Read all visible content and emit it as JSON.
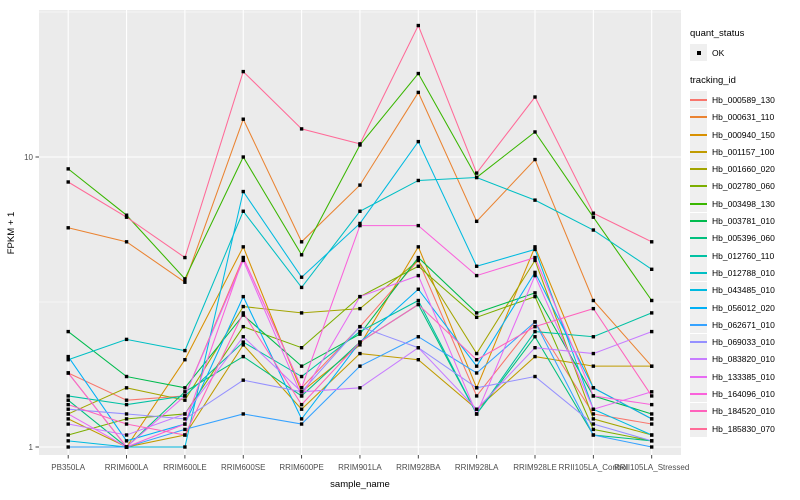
{
  "legend": {
    "quant_status": {
      "title": "quant_status",
      "items": [
        {
          "label": "OK",
          "marker": "point"
        }
      ]
    },
    "tracking": {
      "title": "tracking_id"
    }
  },
  "colors": {
    "panel_bg": "#EBEBEB",
    "grid_major": "#FFFFFF",
    "grid_minor": "#F7F7F7",
    "point": "#000000",
    "axis_text": "#4D4D4D",
    "axis_title": "#000000",
    "tick_mark": "#333333",
    "legend_key_bg": "#EFEFEF"
  },
  "chart_data": {
    "type": "line",
    "title": "",
    "xlabel": "sample_name",
    "ylabel": "FPKM + 1",
    "y_scale": "log10",
    "y_ticks": [
      {
        "value": 1,
        "label": "1"
      },
      {
        "value": 10,
        "label": "10"
      }
    ],
    "y_minor_ticks": [
      3.162,
      31.62
    ],
    "ylim": [
      0.94,
      32.1
    ],
    "grid": true,
    "legend_position": "right",
    "x_categories": [
      "PB350LA",
      "RRIM600LA",
      "RRIM600LE",
      "RRIM600SE",
      "RRIM600PE",
      "RRIM901LA",
      "RRIM928BA",
      "RRIM928LA",
      "RRIM928LE",
      "RRII105LA_Control",
      "RRII105LA_Stressed"
    ],
    "series": [
      {
        "name": "Hb_000589_130",
        "color": "#F8766D",
        "quant_status": "OK",
        "values": [
          1.8,
          1.45,
          1.5,
          4.5,
          1.6,
          2.6,
          4.4,
          1.5,
          2.7,
          1.3,
          1.2
        ]
      },
      {
        "name": "Hb_000631_110",
        "color": "#EA8331",
        "quant_status": "OK",
        "values": [
          5.7,
          5.1,
          3.7,
          13.5,
          5.1,
          8.0,
          16.7,
          6.0,
          9.8,
          3.2,
          1.9
        ]
      },
      {
        "name": "Hb_000940_150",
        "color": "#D89000",
        "quant_status": "OK",
        "values": [
          1.8,
          1.0,
          2.0,
          4.9,
          1.55,
          2.25,
          4.9,
          1.6,
          4.9,
          1.6,
          1.25
        ]
      },
      {
        "name": "Hb_001157_100",
        "color": "#C09B00",
        "quant_status": "OK",
        "values": [
          1.25,
          1.0,
          1.1,
          2.25,
          1.35,
          2.1,
          2.0,
          1.35,
          2.05,
          1.9,
          1.9
        ]
      },
      {
        "name": "Hb_001660_020",
        "color": "#A3A500",
        "quant_status": "OK",
        "values": [
          1.3,
          1.6,
          1.45,
          3.05,
          2.9,
          3.0,
          4.4,
          2.1,
          4.4,
          1.25,
          1.1
        ]
      },
      {
        "name": "Hb_002780_060",
        "color": "#7CAE00",
        "quant_status": "OK",
        "values": [
          1.1,
          1.25,
          1.3,
          2.6,
          2.2,
          3.3,
          4.2,
          2.8,
          3.3,
          1.15,
          1.05
        ]
      },
      {
        "name": "Hb_003498_130",
        "color": "#39B600",
        "quant_status": "OK",
        "values": [
          9.1,
          6.3,
          3.8,
          10.0,
          4.6,
          11.0,
          19.4,
          8.5,
          12.2,
          6.2,
          3.2
        ]
      },
      {
        "name": "Hb_003781_010",
        "color": "#00BB4E",
        "quant_status": "OK",
        "values": [
          2.5,
          1.75,
          1.6,
          2.85,
          1.9,
          2.45,
          4.5,
          2.9,
          3.4,
          1.5,
          1.3
        ]
      },
      {
        "name": "Hb_005396_060",
        "color": "#00BF7D",
        "quant_status": "OK",
        "values": [
          1.45,
          1.0,
          1.55,
          2.05,
          1.5,
          2.3,
          3.1,
          1.3,
          2.4,
          1.1,
          1.05
        ]
      },
      {
        "name": "Hb_012760_110",
        "color": "#00C1A3",
        "quant_status": "OK",
        "values": [
          1.5,
          1.4,
          1.5,
          2.3,
          1.75,
          2.5,
          3.2,
          1.3,
          2.5,
          2.4,
          2.9
        ]
      },
      {
        "name": "Hb_012788_010",
        "color": "#00BFC4",
        "quant_status": "OK",
        "values": [
          2.0,
          2.35,
          2.15,
          6.5,
          3.55,
          6.5,
          8.3,
          8.5,
          7.1,
          5.6,
          4.1
        ]
      },
      {
        "name": "Hb_043485_010",
        "color": "#00BAE0",
        "quant_status": "OK",
        "values": [
          1.05,
          1.0,
          1.0,
          7.6,
          3.85,
          5.9,
          11.3,
          4.2,
          4.8,
          1.35,
          1.1
        ]
      },
      {
        "name": "Hb_056012_020",
        "color": "#00B0F6",
        "quant_status": "OK",
        "values": [
          2.05,
          1.05,
          1.2,
          3.3,
          1.25,
          2.3,
          3.5,
          1.9,
          4.0,
          1.6,
          1.25
        ]
      },
      {
        "name": "Hb_062671_010",
        "color": "#35A2FF",
        "quant_status": "OK",
        "values": [
          1.0,
          1.0,
          1.15,
          1.3,
          1.2,
          1.9,
          2.4,
          1.8,
          2.7,
          1.1,
          1.0
        ]
      },
      {
        "name": "Hb_069033_010",
        "color": "#9590FF",
        "quant_status": "OK",
        "values": [
          1.35,
          1.3,
          1.25,
          1.7,
          1.55,
          2.6,
          2.2,
          1.6,
          1.75,
          1.2,
          1.05
        ]
      },
      {
        "name": "Hb_083820_010",
        "color": "#C77CFF",
        "quant_status": "OK",
        "values": [
          1.2,
          1.1,
          1.3,
          2.4,
          1.55,
          1.6,
          2.2,
          1.35,
          2.2,
          2.1,
          2.5
        ]
      },
      {
        "name": "Hb_133385_010",
        "color": "#E76BF3",
        "quant_status": "OK",
        "values": [
          1.3,
          1.0,
          1.5,
          4.4,
          1.5,
          3.3,
          3.9,
          1.3,
          3.9,
          1.35,
          1.55
        ]
      },
      {
        "name": "Hb_164096_010",
        "color": "#FA62DB",
        "quant_status": "OK",
        "values": [
          1.8,
          1.0,
          1.2,
          4.5,
          1.6,
          5.8,
          5.8,
          3.9,
          4.5,
          1.5,
          1.4
        ]
      },
      {
        "name": "Hb_184520_010",
        "color": "#FF62BC",
        "quant_status": "OK",
        "values": [
          1.4,
          1.2,
          1.1,
          2.9,
          1.4,
          2.3,
          3.1,
          2.0,
          2.6,
          3.0,
          1.5
        ]
      },
      {
        "name": "Hb_185830_070",
        "color": "#FF6A98",
        "quant_status": "OK",
        "values": [
          8.2,
          6.2,
          4.5,
          19.7,
          12.5,
          11.1,
          28.4,
          8.8,
          16.1,
          6.4,
          5.1
        ]
      }
    ]
  }
}
